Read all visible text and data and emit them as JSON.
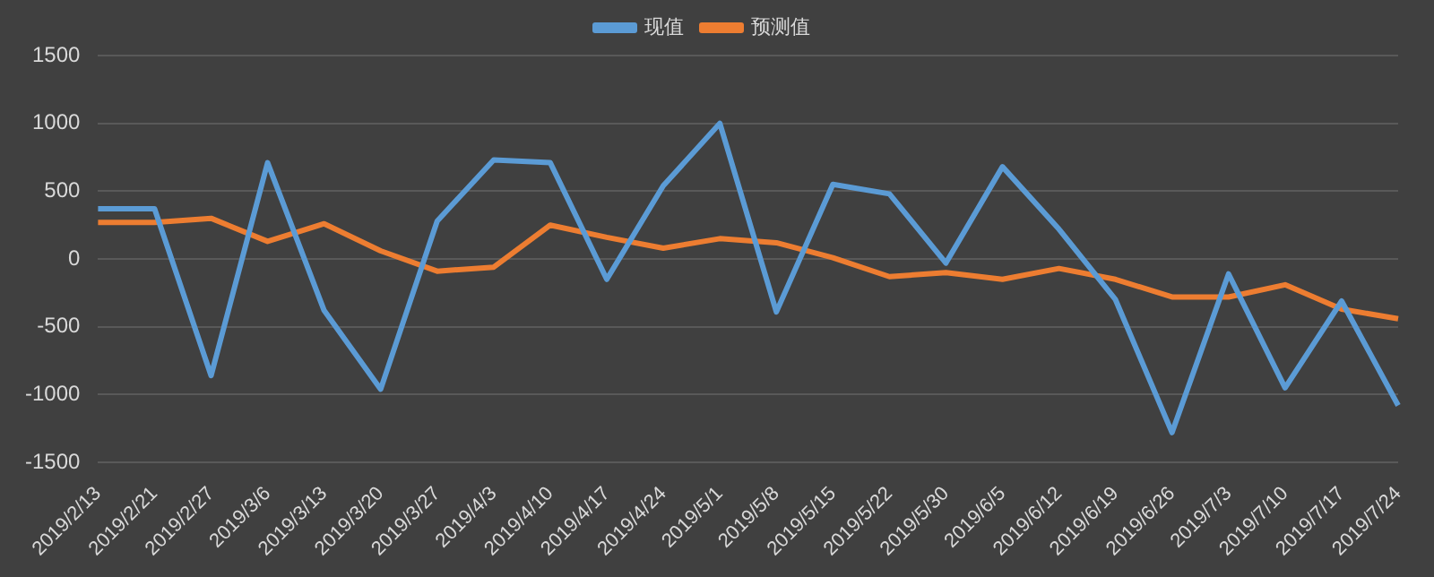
{
  "chart_data": {
    "type": "line",
    "categories": [
      "2019/2/13",
      "2019/2/21",
      "2019/2/27",
      "2019/3/6",
      "2019/3/13",
      "2019/3/20",
      "2019/3/27",
      "2019/4/3",
      "2019/4/10",
      "2019/4/17",
      "2019/4/24",
      "2019/5/1",
      "2019/5/8",
      "2019/5/15",
      "2019/5/22",
      "2019/5/30",
      "2019/6/5",
      "2019/6/12",
      "2019/6/19",
      "2019/6/26",
      "2019/7/3",
      "2019/7/10",
      "2019/7/17",
      "2019/7/24"
    ],
    "series": [
      {
        "name": "现值",
        "color": "#5b9bd5",
        "values": [
          370,
          370,
          -860,
          710,
          -380,
          -960,
          280,
          730,
          710,
          -150,
          540,
          1000,
          -390,
          550,
          480,
          -30,
          680,
          220,
          -300,
          -1280,
          -110,
          -950,
          -310,
          -1080
        ]
      },
      {
        "name": "预测值",
        "color": "#ed7d31",
        "values": [
          270,
          270,
          300,
          130,
          260,
          60,
          -90,
          -60,
          250,
          160,
          80,
          150,
          120,
          10,
          -130,
          -100,
          -150,
          -70,
          -150,
          -280,
          -280,
          -190,
          -370,
          -440
        ]
      }
    ],
    "ylim": [
      -1500,
      1500
    ],
    "yticks": [
      -1500,
      -1000,
      -500,
      0,
      500,
      1000,
      1500
    ],
    "grid": "y",
    "legend": "top",
    "marker": "none",
    "line_style": "solid"
  }
}
